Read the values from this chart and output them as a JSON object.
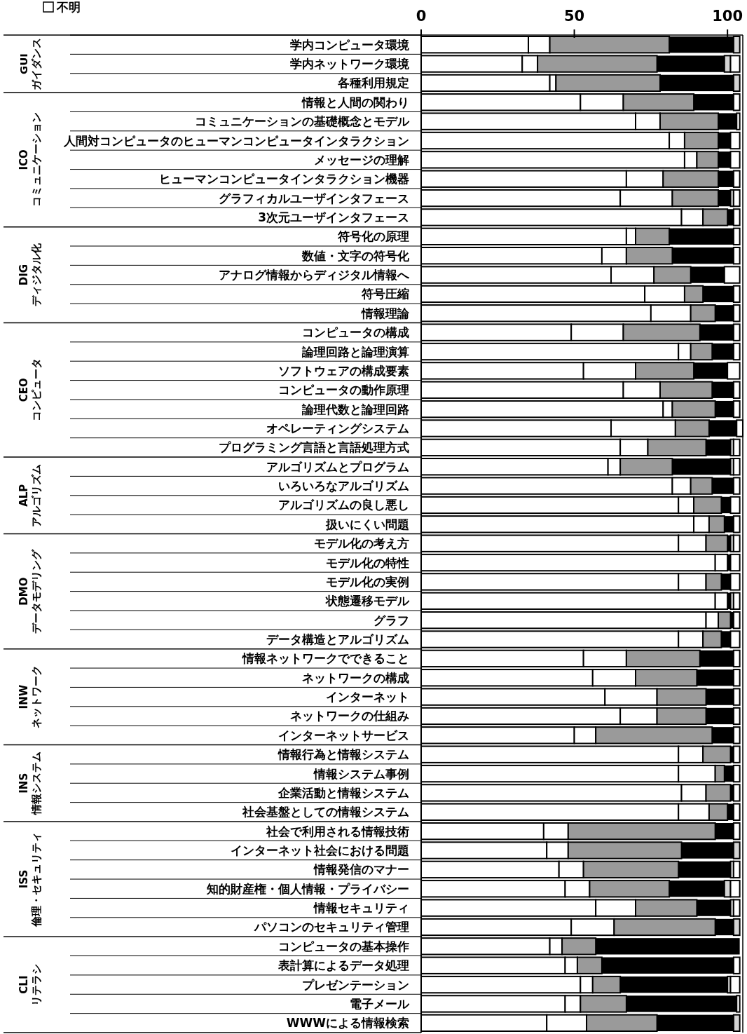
{
  "chart_data": {
    "type": "bar",
    "orientation": "horizontal",
    "stacked": true,
    "legend": "top left",
    "categories": [
      "学内コンピュータ環境",
      "学内ネットワーク環境",
      "各種利用規定",
      "情報と人間の関わり",
      "コミュニケーションの基礎概念とモデル",
      "人間対コンピュータのヒューマンコンピュータインタラクション",
      "メッセージの理解",
      "ヒューマンコンピュータインタラクション機器",
      "グラフィカルユーザインタフェース",
      "3次元ユーザインタフェース",
      "符号化の原理",
      "数値・文字の符号化",
      "アナログ情報からディジタル情報へ",
      "符号圧縮",
      "情報理論",
      "コンピュータの構成",
      "論理回路と論理演算",
      "ソフトウェアの構成要素",
      "コンピュータの動作原理",
      "論理代数と論理回路",
      "オペレーティングシステム",
      "プログラミング言語と言語処理方式",
      "アルゴリズムとプログラム",
      "いろいろなアルゴリズム",
      "アルゴリズムの良し悪し",
      "扱いにくい問題",
      "モデル化の考え方",
      "モデル化の特性",
      "モデル化の実例",
      "状態遷移モデル",
      "グラフ",
      "データ構造とアルゴリズム",
      "情報ネットワークでできること",
      "ネットワークの構成",
      "インターネット",
      "ネットワークの仕組み",
      "インターネットサービス",
      "情報行為と情報システム",
      "情報システム事例",
      "企業活動と情報システム",
      "社会基盤としての情報システム",
      "社会で利用される情報技術",
      "インターネット社会における問題",
      "情報発信のマナー",
      "知的財産権・個人情報・プライバシー",
      "情報セキュリティ",
      "パソコンのセキュリティ管理",
      "コンピュータの基本操作",
      "表計算によるデータ処理",
      "プレゼンテーション",
      "電子メール",
      "WWWによる情報検索"
    ],
    "series": [
      {
        "color": "#ffffff",
        "values": [
          35,
          33,
          42,
          52,
          70,
          81,
          86,
          67,
          65,
          85,
          67,
          59,
          62,
          73,
          75,
          49,
          84,
          53,
          66,
          79,
          62,
          65,
          61,
          82,
          84,
          89,
          84,
          96,
          84,
          96,
          93,
          84,
          53,
          56,
          60,
          65,
          50,
          84,
          84,
          85,
          84,
          40,
          41,
          45,
          47,
          57,
          49,
          42,
          47,
          52,
          47,
          41
        ]
      },
      {
        "color": "#ffffff",
        "values": [
          7,
          5,
          2,
          14,
          8,
          5,
          4,
          12,
          17,
          7,
          3,
          8,
          14,
          13,
          13,
          17,
          4,
          17,
          12,
          3,
          21,
          9,
          4,
          6,
          5,
          5,
          9,
          4,
          9,
          4,
          4,
          8,
          14,
          14,
          17,
          12,
          7,
          8,
          12,
          8,
          10,
          8,
          7,
          8,
          8,
          13,
          14,
          4,
          4,
          4,
          5,
          13
        ]
      },
      {
        "color": "#9a9a9a",
        "values": [
          39,
          39,
          34,
          23,
          19,
          11,
          7,
          18,
          15,
          8,
          11,
          15,
          12,
          6,
          8,
          25,
          7,
          19,
          17,
          14,
          11,
          19,
          17,
          7,
          9,
          5,
          7,
          0,
          5,
          0,
          4,
          6,
          24,
          20,
          16,
          16,
          38,
          9,
          3,
          8,
          6,
          48,
          37,
          31,
          26,
          20,
          33,
          11,
          8,
          9,
          15,
          23
        ]
      },
      {
        "color": "#000000",
        "values": [
          21,
          22,
          24,
          13,
          6,
          4,
          4,
          5,
          4,
          2,
          21,
          20,
          11,
          10,
          6,
          11,
          7,
          11,
          7,
          6,
          9,
          8,
          19,
          7,
          3,
          3,
          1,
          1,
          3,
          1,
          1,
          3,
          11,
          12,
          9,
          9,
          7,
          1,
          3,
          1,
          2,
          6,
          17,
          17,
          18,
          11,
          6,
          47,
          43,
          35,
          36,
          25
        ]
      },
      {
        "color": "#d4d4d4",
        "values": [
          2,
          2,
          2,
          0,
          0,
          0,
          0,
          0,
          1,
          0,
          0,
          0,
          0,
          0,
          0,
          0,
          0,
          0,
          0,
          0,
          0,
          1,
          1,
          0,
          0,
          0,
          1,
          0,
          0,
          1,
          0,
          0,
          0,
          0,
          0,
          0,
          0,
          0,
          0,
          0,
          0,
          0,
          2,
          1,
          2,
          1,
          2,
          0,
          0,
          1,
          0,
          2
        ]
      },
      {
        "name": "不明",
        "color": "#ffffff",
        "values": [
          0,
          3,
          0,
          2,
          1,
          3,
          3,
          2,
          2,
          2,
          2,
          2,
          5,
          2,
          2,
          2,
          2,
          4,
          2,
          2,
          2,
          2,
          2,
          2,
          3,
          2,
          2,
          3,
          3,
          2,
          2,
          3,
          2,
          2,
          2,
          2,
          2,
          2,
          2,
          2,
          2,
          2,
          0,
          2,
          3,
          2,
          0,
          0,
          2,
          3,
          1,
          0
        ]
      }
    ],
    "xlim": [
      0,
      105
    ],
    "xticks": [
      0,
      50,
      100
    ],
    "annotations": [
      "GUI ガイダンス",
      "ICO コミュニケーション",
      "DIG ディジタル化",
      "CEO コンピュータ",
      "ALP アルゴリズム",
      "DMO データモデリング",
      "INW ネットワーク",
      "INS 情報システム",
      "ISS 倫理・セキュリティ",
      "CLI リテラシ"
    ]
  }
}
